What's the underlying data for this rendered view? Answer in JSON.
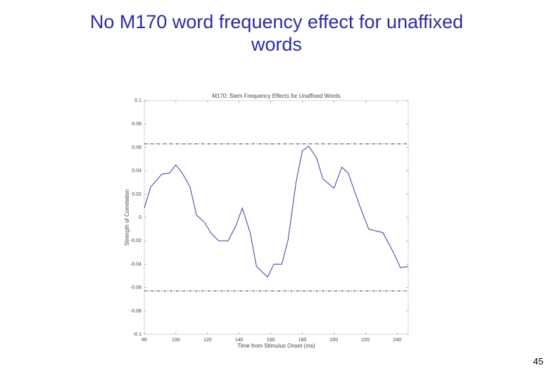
{
  "slide_title": "No M170 word frequency effect for unaffixed words",
  "page_number": "45",
  "chart_data": {
    "type": "line",
    "title": "M170: Stem Frequency Effects for Unaffixed Words",
    "x_label": "Time from Stimulus Onset (ms)",
    "y_label": "Strength of Correlation",
    "x": [
      80,
      84,
      91,
      96,
      100,
      104,
      109,
      113,
      118,
      122,
      127,
      133,
      138,
      142,
      147,
      151,
      158,
      162,
      167,
      171,
      176,
      180,
      184,
      189,
      193,
      200,
      205,
      209,
      216,
      222,
      231,
      238,
      242,
      247
    ],
    "series": [
      {
        "name": "Stem frequency",
        "color": "#3040a0",
        "values": [
          0.008,
          0.026,
          0.037,
          0.038,
          0.045,
          0.038,
          0.026,
          0.002,
          -0.004,
          -0.013,
          -0.02,
          -0.02,
          -0.007,
          0.008,
          -0.013,
          -0.042,
          -0.051,
          -0.04,
          -0.04,
          -0.019,
          0.03,
          0.057,
          0.061,
          0.051,
          0.033,
          0.025,
          0.043,
          0.038,
          0.011,
          -0.01,
          -0.013,
          -0.031,
          -0.043,
          -0.042
        ]
      }
    ],
    "reference_lines": [
      0.063,
      -0.063
    ],
    "xlim": [
      80,
      247
    ],
    "ylim": [
      -0.1,
      0.1
    ],
    "xticks": [
      80,
      100,
      120,
      140,
      160,
      180,
      200,
      220,
      240
    ],
    "yticks": [
      0.1,
      0.08,
      0.06,
      0.04,
      0.02,
      0,
      -0.02,
      -0.04,
      -0.06,
      -0.08,
      -0.1
    ]
  }
}
